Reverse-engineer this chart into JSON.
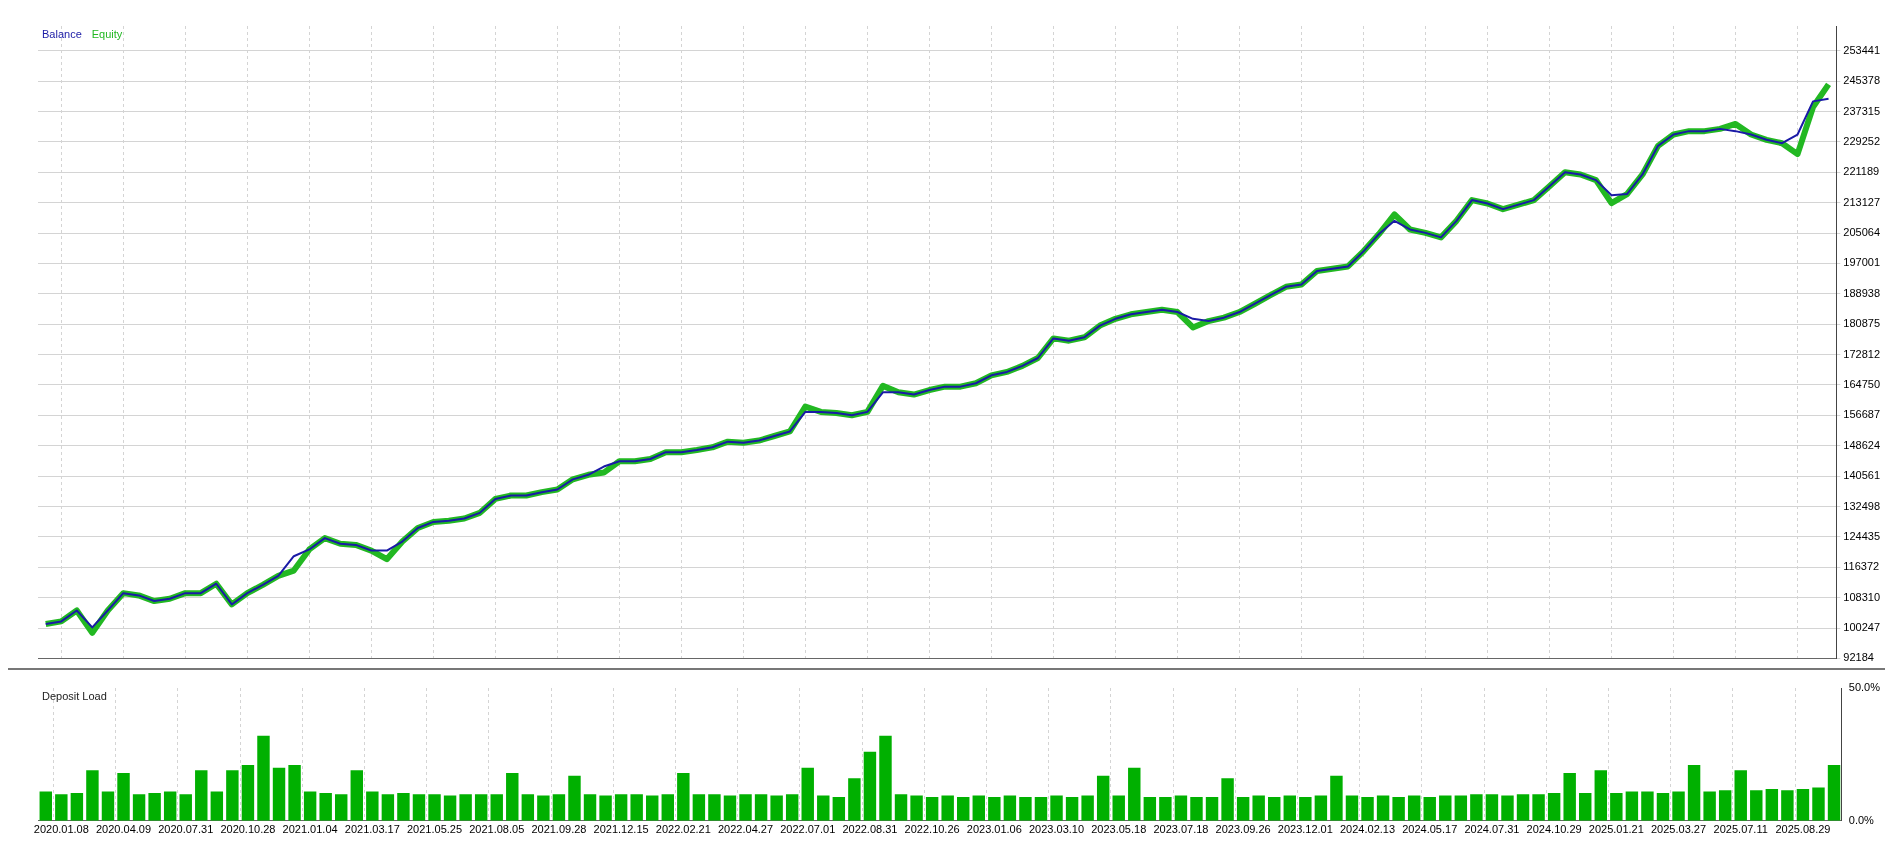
{
  "chart_data": [
    {
      "type": "line",
      "categories": [
        null,
        "2020.01.08",
        null,
        null,
        null,
        "2020.04.09",
        null,
        null,
        null,
        "2020.07.31",
        null,
        null,
        null,
        "2020.10.28",
        null,
        null,
        null,
        "2021.01.04",
        null,
        null,
        null,
        "2021.03.17",
        null,
        null,
        null,
        "2021.05.25",
        null,
        null,
        null,
        "2021.08.05",
        null,
        null,
        null,
        "2021.09.28",
        null,
        null,
        null,
        "2021.12.15",
        null,
        null,
        null,
        "2022.02.21",
        null,
        null,
        null,
        "2022.04.27",
        null,
        null,
        null,
        "2022.07.01",
        null,
        null,
        null,
        "2022.08.31",
        null,
        null,
        null,
        "2022.10.26",
        null,
        null,
        null,
        "2023.01.06",
        null,
        null,
        null,
        "2023.03.10",
        null,
        null,
        null,
        "2023.05.18",
        null,
        null,
        null,
        "2023.07.18",
        null,
        null,
        null,
        "2023.09.26",
        null,
        null,
        null,
        "2023.12.01",
        null,
        null,
        null,
        "2024.02.13",
        null,
        null,
        null,
        "2024.05.17",
        null,
        null,
        null,
        "2024.07.31",
        null,
        null,
        null,
        "2024.10.29",
        null,
        null,
        null,
        "2025.01.21",
        null,
        null,
        null,
        "2025.03.27",
        null,
        null,
        null,
        "2025.07.11",
        null,
        null,
        null,
        "2025.08.29",
        null,
        null
      ],
      "series": [
        {
          "name": "Equity",
          "color": "#22b822",
          "values": [
            101300,
            102000,
            104900,
            99000,
            104900,
            109500,
            108900,
            107400,
            108000,
            109500,
            109500,
            112000,
            106500,
            109500,
            111700,
            114100,
            115500,
            121100,
            124100,
            122600,
            122300,
            120800,
            118500,
            123200,
            126800,
            128400,
            128700,
            129300,
            130800,
            134500,
            135400,
            135400,
            136300,
            137000,
            139700,
            140900,
            141500,
            144500,
            144500,
            145100,
            146900,
            146900,
            147500,
            148200,
            149700,
            149400,
            150000,
            151200,
            152400,
            159000,
            157600,
            157300,
            156700,
            157600,
            164500,
            162800,
            162200,
            163400,
            164300,
            164300,
            165200,
            167300,
            168200,
            169800,
            171900,
            177100,
            176500,
            177400,
            180500,
            182300,
            183500,
            184100,
            184700,
            184100,
            180000,
            181700,
            182600,
            184100,
            186300,
            188600,
            190800,
            191400,
            195000,
            195600,
            196200,
            200200,
            204800,
            210000,
            206000,
            205100,
            203900,
            208300,
            213800,
            212900,
            211400,
            212600,
            213800,
            217500,
            221200,
            220600,
            219100,
            213000,
            215400,
            220600,
            228200,
            231200,
            232100,
            232100,
            232700,
            234000,
            231200,
            229800,
            228900,
            226000,
            238500,
            244500
          ]
        },
        {
          "name": "Balance",
          "color": "#1a1aa6",
          "values": [
            101300,
            102000,
            104900,
            100400,
            104900,
            109500,
            108900,
            107400,
            108000,
            109500,
            109500,
            112000,
            106500,
            109500,
            111700,
            114100,
            119300,
            121100,
            124100,
            122600,
            122300,
            120800,
            120800,
            123200,
            126800,
            128400,
            128700,
            129300,
            130800,
            134500,
            135400,
            135400,
            136300,
            137000,
            139700,
            140900,
            143100,
            144500,
            144500,
            145100,
            146900,
            146900,
            147500,
            148200,
            149700,
            149400,
            150000,
            151200,
            152400,
            157600,
            157600,
            157300,
            156700,
            157600,
            162800,
            162800,
            162200,
            163400,
            164300,
            164300,
            165200,
            167300,
            168200,
            169800,
            171900,
            177100,
            176500,
            177400,
            180500,
            182300,
            183500,
            184100,
            184700,
            184100,
            182300,
            181700,
            182600,
            184100,
            186300,
            188600,
            190800,
            191400,
            195000,
            195600,
            196200,
            200200,
            204800,
            208300,
            206000,
            205100,
            203900,
            208300,
            213800,
            212900,
            211400,
            212600,
            213800,
            217500,
            221200,
            220600,
            219100,
            215100,
            215400,
            220600,
            228200,
            231200,
            232100,
            232100,
            232700,
            232100,
            231200,
            229800,
            228900,
            231200,
            240000,
            240700
          ]
        }
      ],
      "ylim": [
        92184,
        260000
      ],
      "yticks": [
        92184,
        100247,
        108310,
        116372,
        124435,
        132498,
        140561,
        148624,
        156687,
        164750,
        172812,
        180875,
        188938,
        197001,
        205064,
        213127,
        221189,
        229252,
        237315,
        245378,
        253441
      ],
      "grid": true,
      "legend": "top left",
      "tick_labels": "y"
    },
    {
      "type": "bar",
      "title": "Deposit Load",
      "categories": [
        null,
        "2020.01.08",
        null,
        null,
        null,
        "2020.04.09",
        null,
        null,
        null,
        "2020.07.31",
        null,
        null,
        null,
        "2020.10.28",
        null,
        null,
        null,
        "2021.01.04",
        null,
        null,
        null,
        "2021.03.17",
        null,
        null,
        null,
        "2021.05.25",
        null,
        null,
        null,
        "2021.08.05",
        null,
        null,
        null,
        "2021.09.28",
        null,
        null,
        null,
        "2021.12.15",
        null,
        null,
        null,
        "2022.02.21",
        null,
        null,
        null,
        "2022.04.27",
        null,
        null,
        null,
        "2022.07.01",
        null,
        null,
        null,
        "2022.08.31",
        null,
        null,
        null,
        "2022.10.26",
        null,
        null,
        null,
        "2023.01.06",
        null,
        null,
        null,
        "2023.03.10",
        null,
        null,
        null,
        "2023.05.18",
        null,
        null,
        null,
        "2023.07.18",
        null,
        null,
        null,
        "2023.09.26",
        null,
        null,
        null,
        "2023.12.01",
        null,
        null,
        null,
        "2024.02.13",
        null,
        null,
        null,
        "2024.05.17",
        null,
        null,
        null,
        "2024.07.31",
        null,
        null,
        null,
        "2024.10.29",
        null,
        null,
        null,
        "2025.01.21",
        null,
        null,
        null,
        "2025.03.27",
        null,
        null,
        null,
        "2025.07.11",
        null,
        null,
        null,
        "2025.08.29",
        null,
        null
      ],
      "color": "#00b000",
      "values": [
        11,
        10,
        10.5,
        19,
        11,
        18,
        10,
        10.5,
        11,
        10,
        19,
        11,
        19,
        21,
        32,
        20,
        21,
        11,
        10.5,
        10,
        19,
        11,
        10,
        10.5,
        10,
        10,
        9.5,
        10,
        10,
        10,
        18,
        10,
        9.5,
        10,
        17,
        10,
        9.5,
        10,
        10,
        9.5,
        10,
        18,
        10,
        10,
        9.5,
        10,
        10,
        9.5,
        10,
        20,
        9.5,
        9,
        16,
        26,
        32,
        10,
        9.5,
        9,
        9.5,
        9,
        9.5,
        9,
        9.5,
        9,
        9,
        9.5,
        9,
        9.5,
        17,
        9.5,
        20,
        9,
        9,
        9.5,
        9,
        9,
        16,
        9,
        9.5,
        9,
        9.5,
        9,
        9.5,
        17,
        9.5,
        9,
        9.5,
        9,
        9.5,
        9,
        9.5,
        9.5,
        10,
        10,
        9.5,
        10,
        10,
        10.5,
        18,
        10.5,
        19,
        10.5,
        11,
        11,
        10.5,
        11,
        21,
        11,
        11.5,
        19,
        11.5,
        12,
        11.5,
        12,
        12.5,
        21
      ],
      "ylim": [
        0,
        50
      ],
      "yticks": [
        {
          "value": 0,
          "label": "0.0%"
        },
        {
          "value": 50,
          "label": "50.0%"
        }
      ],
      "grid": "x"
    }
  ]
}
